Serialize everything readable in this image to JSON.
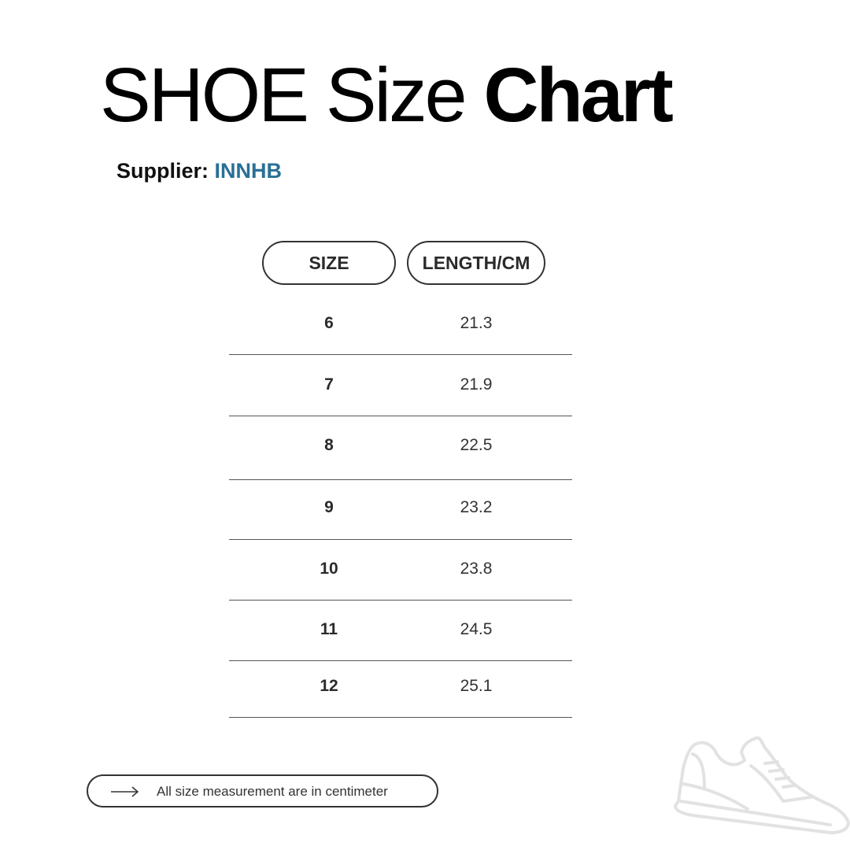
{
  "title": {
    "light": "SHOE Size ",
    "bold": "Chart"
  },
  "supplier": {
    "label": "Supplier: ",
    "name": "INNHB",
    "name_color": "#2a6f96"
  },
  "table": {
    "headers": [
      "SIZE",
      "LENGTH/CM"
    ],
    "rows": [
      {
        "size": "6",
        "length": "21.3"
      },
      {
        "size": "7",
        "length": "21.9"
      },
      {
        "size": "8",
        "length": "22.5"
      },
      {
        "size": "9",
        "length": "23.2"
      },
      {
        "size": "10",
        "length": "23.8"
      },
      {
        "size": "11",
        "length": "24.5"
      },
      {
        "size": "12",
        "length": "25.1"
      }
    ]
  },
  "note": {
    "icon": "arrow-right-icon",
    "text": "All size measurement are in centimeter"
  },
  "decoration": {
    "icon": "sneaker-icon"
  }
}
